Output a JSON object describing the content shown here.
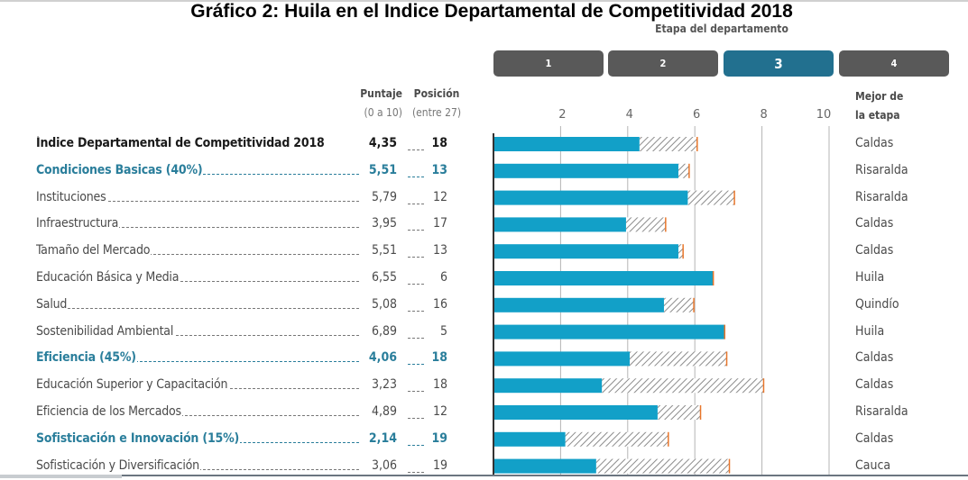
{
  "title": "Gráfico 2: Huila en el Indice Departamental de Competitividad 2018",
  "stage": {
    "caption": "Etapa del departamento",
    "options": [
      "1",
      "2",
      "3",
      "4"
    ],
    "active": "3"
  },
  "headers": {
    "score": "Puntaje",
    "score_sub": "(0 a 10)",
    "position": "Posición",
    "position_sub": "(entre 27)",
    "best": "Mejor de",
    "best_sub": "la etapa"
  },
  "colors": {
    "bar": "#12a0c8",
    "hatch": "#8c8c8c",
    "best_marker": "#e8762b",
    "pillar_text": "#2a7e9b",
    "stage_active": "#22708f",
    "stage_inactive": "#595959"
  },
  "rows": [
    {
      "label": "Índice Departamental de Competitividad 2018",
      "score": "4,35",
      "position": "18",
      "best": "Caldas",
      "kind": "total"
    },
    {
      "label": "Condiciones Basicas (40%)",
      "score": "5,51",
      "position": "13",
      "best": "Risaralda",
      "kind": "pillar"
    },
    {
      "label": "Instituciones",
      "score": "5,79",
      "position": "12",
      "best": "Risaralda",
      "kind": "item"
    },
    {
      "label": "Infraestructura",
      "score": "3,95",
      "position": "17",
      "best": "Caldas",
      "kind": "item"
    },
    {
      "label": "Tamaño del Mercado",
      "score": "5,51",
      "position": "13",
      "best": "Caldas",
      "kind": "item"
    },
    {
      "label": "Educación Básica y Media",
      "score": "6,55",
      "position": "6",
      "best": "Huila",
      "kind": "item"
    },
    {
      "label": "Salud",
      "score": "5,08",
      "position": "16",
      "best": "Quindío",
      "kind": "item"
    },
    {
      "label": "Sostenibilidad Ambiental",
      "score": "6,89",
      "position": "5",
      "best": "Huila",
      "kind": "item"
    },
    {
      "label": "Eficiencia (45%)",
      "score": "4,06",
      "position": "18",
      "best": "Caldas",
      "kind": "pillar"
    },
    {
      "label": "Educación Superior y Capacitación",
      "score": "3,23",
      "position": "18",
      "best": "Caldas",
      "kind": "item"
    },
    {
      "label": "Eficiencia de los Mercados",
      "score": "4,89",
      "position": "12",
      "best": "Risaralda",
      "kind": "item"
    },
    {
      "label": "Sofisticación e Innovación (15%)",
      "score": "2,14",
      "position": "19",
      "best": "Caldas",
      "kind": "pillar"
    },
    {
      "label": "Sofisticación y Diversificación",
      "score": "3,06",
      "position": "19",
      "best": "Cauca",
      "kind": "item"
    }
  ],
  "chart_data": {
    "type": "bar",
    "orientation": "horizontal",
    "title": "Gráfico 2: Huila en el Indice Departamental de Competitividad 2018",
    "xlabel": "Puntaje (0 a 10)",
    "ylabel": "",
    "xlim": [
      0,
      10
    ],
    "xticks": [
      2,
      4,
      6,
      8,
      10
    ],
    "grid": true,
    "categories": [
      "Índice Departamental de Competitividad 2018",
      "Condiciones Basicas (40%)",
      "Instituciones",
      "Infraestructura",
      "Tamaño del Mercado",
      "Educación Básica y Media",
      "Salud",
      "Sostenibilidad Ambiental",
      "Eficiencia (45%)",
      "Educación Superior y Capacitación",
      "Eficiencia de los Mercados",
      "Sofisticación e Innovación (15%)",
      "Sofisticación y Diversificación"
    ],
    "series": [
      {
        "name": "Huila",
        "values": [
          4.35,
          5.51,
          5.79,
          3.95,
          5.51,
          6.55,
          5.08,
          6.89,
          4.06,
          3.23,
          4.89,
          2.14,
          3.06
        ]
      },
      {
        "name": "Mejor de la etapa",
        "values": [
          6.07,
          5.83,
          7.18,
          5.13,
          5.65,
          6.55,
          5.97,
          6.89,
          6.95,
          8.05,
          6.17,
          5.21,
          7.03
        ]
      }
    ]
  }
}
